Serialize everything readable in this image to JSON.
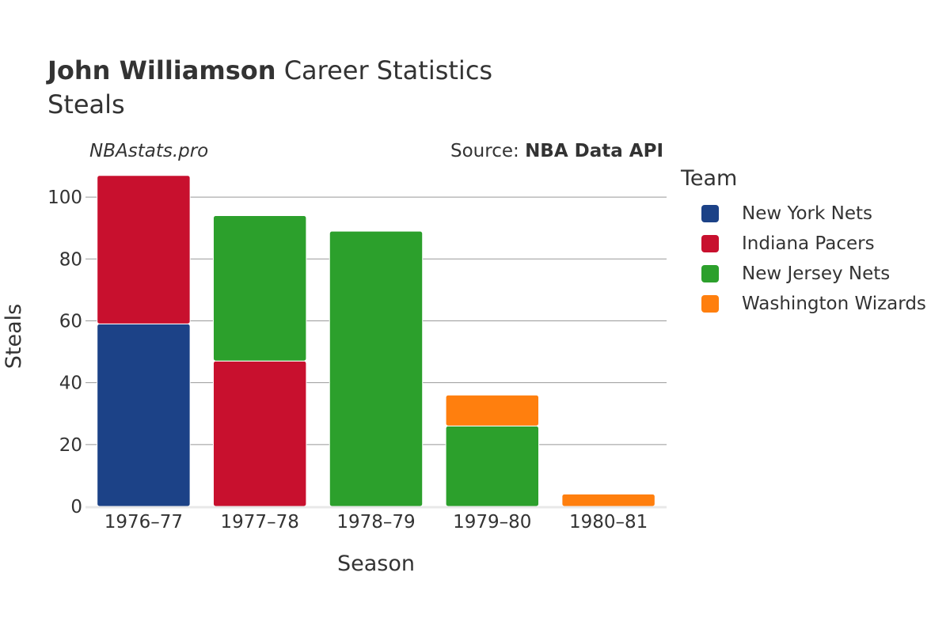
{
  "header": {
    "name": "John Williamson",
    "title_rest": "Career Statistics",
    "subtitle": "Steals",
    "watermark": "NBAstats.pro",
    "source_prefix": "Source: ",
    "source_name": "NBA Data API"
  },
  "legend": {
    "title": "Team"
  },
  "chart_data": {
    "type": "bar",
    "stacked": true,
    "title": "John Williamson Career Statistics",
    "subtitle": "Steals",
    "xlabel": "Season",
    "ylabel": "Steals",
    "categories": [
      "1976–77",
      "1977–78",
      "1978–79",
      "1979–80",
      "1980–81"
    ],
    "ylim": [
      0,
      110
    ],
    "yticks": [
      0,
      20,
      40,
      60,
      80,
      100
    ],
    "grid": true,
    "legend_position": "right",
    "series": [
      {
        "name": "New York Nets",
        "color": "#1c4287",
        "values": [
          59,
          0,
          0,
          0,
          0
        ]
      },
      {
        "name": "Indiana Pacers",
        "color": "#c8102e",
        "values": [
          48,
          47,
          0,
          0,
          0
        ]
      },
      {
        "name": "New Jersey Nets",
        "color": "#2ca02c",
        "values": [
          0,
          47,
          89,
          26,
          0
        ]
      },
      {
        "name": "Washington Wizards",
        "color": "#ff7f0e",
        "values": [
          0,
          0,
          0,
          10,
          4
        ]
      }
    ]
  }
}
